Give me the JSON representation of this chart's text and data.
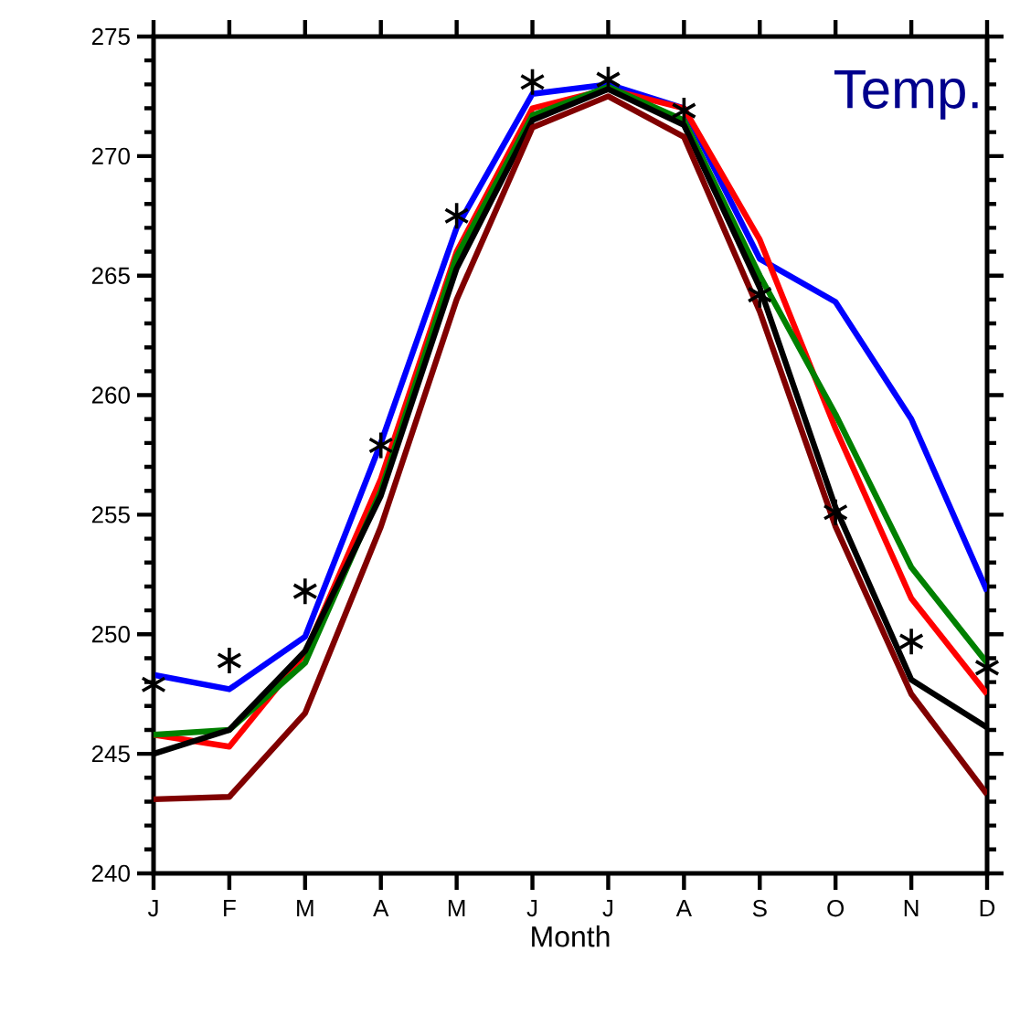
{
  "chart_data": {
    "type": "line",
    "xlabel": "Month",
    "categories": [
      "J",
      "F",
      "M",
      "A",
      "M",
      "J",
      "J",
      "A",
      "S",
      "O",
      "N",
      "D"
    ],
    "ylim": [
      240,
      275
    ],
    "yticks": [
      240,
      245,
      250,
      255,
      260,
      265,
      270,
      275
    ],
    "grid": false,
    "annotations": [
      "Temp."
    ],
    "series": [
      {
        "color": "#0000ff",
        "values": [
          248.3,
          247.7,
          249.9,
          258.0,
          267.0,
          272.6,
          273.0,
          272.0,
          265.7,
          263.9,
          259.0,
          251.8
        ]
      },
      {
        "color": "#ff0000",
        "values": [
          245.8,
          245.3,
          249.2,
          256.5,
          266.0,
          272.0,
          272.8,
          272.0,
          266.5,
          258.6,
          251.5,
          247.5
        ]
      },
      {
        "color": "#008000",
        "values": [
          245.8,
          246.0,
          248.8,
          256.0,
          265.8,
          271.7,
          272.9,
          271.5,
          265.0,
          259.2,
          252.8,
          248.8
        ]
      },
      {
        "color": "#000000",
        "values": [
          245.0,
          246.0,
          249.3,
          255.8,
          265.3,
          271.5,
          272.8,
          271.3,
          264.5,
          255.3,
          248.1,
          246.1
        ]
      },
      {
        "color": "#800000",
        "values": [
          243.1,
          243.2,
          246.7,
          254.5,
          264.0,
          271.2,
          272.5,
          270.8,
          263.5,
          254.5,
          247.5,
          243.3
        ]
      },
      {
        "type": "scatter",
        "marker": "cross",
        "color": "#000000",
        "values": [
          247.9,
          248.9,
          251.8,
          257.9,
          267.5,
          273.1,
          273.2,
          271.9,
          264.2,
          255.1,
          249.7,
          248.6
        ]
      }
    ]
  }
}
